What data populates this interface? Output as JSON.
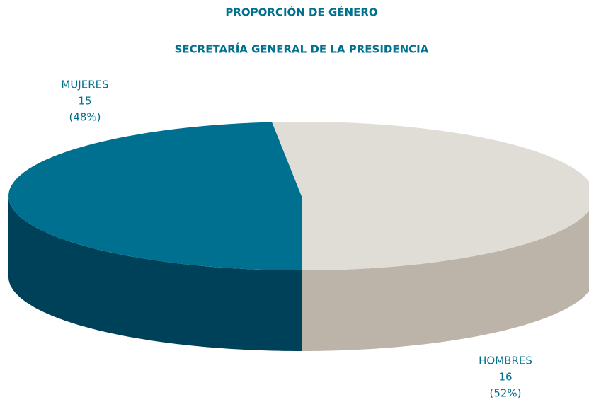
{
  "chart_data": {
    "type": "pie3d",
    "title": "PROPORCIÓN DE GÉNERO",
    "subtitle": "SECRETARÍA GENERAL DE LA PRESIDENCIA",
    "categories": [
      "MUJERES",
      "HOMBRES"
    ],
    "values": [
      15,
      16
    ],
    "share_labels": [
      "(48%)",
      "(52%)"
    ],
    "colors": [
      "#007090",
      "#e0dcd6"
    ],
    "side_colors": [
      "#00415a",
      "#bcb3a9"
    ]
  }
}
